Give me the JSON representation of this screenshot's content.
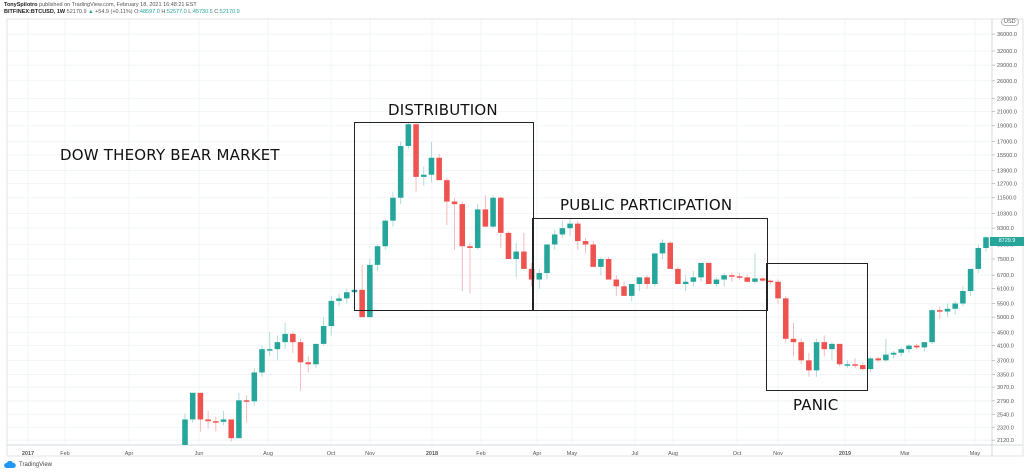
{
  "header": {
    "publisher": "TonySpilotro",
    "published_text": "published on TradingView.com, February 18, 2021 16:48:21 EST",
    "symbol": "BITFINEX:BTCUSD, 1W",
    "last": "52170.9",
    "change": "+54.9 (+0.11%)",
    "open_label": "O:",
    "open": "48597.0",
    "high_label": "H:",
    "high": "52577.0",
    "low_label": "L:",
    "low": "45730.5",
    "close_label": "C:",
    "close": "52170.9"
  },
  "footer": {
    "brand": "TradingView"
  },
  "currency": "USD",
  "last_price_tag": "8729.9",
  "colors": {
    "up": "#26a69a",
    "down": "#ef5350",
    "grid": "#eef3f6",
    "box": "#222222"
  },
  "annotations": {
    "title": "DOW THEORY BEAR MARKET",
    "distribution": "DISTRIBUTION",
    "public_participation": "PUBLIC PARTICIPATION",
    "panic": "PANIC"
  },
  "chart_data": {
    "type": "candlestick",
    "title": "DOW THEORY BEAR MARKET",
    "symbol": "BITFINEX:BTCUSD",
    "interval": "1W",
    "scale": "log",
    "ylabel": "USD",
    "y_ticks": [
      "36000.0",
      "32000.0",
      "29000.0",
      "26000.0",
      "23000.0",
      "21000.0",
      "19000.0",
      "17000.0",
      "15500.0",
      "13900.0",
      "12700.0",
      "11500.0",
      "10300.0",
      "9300.0",
      "8300.0",
      "7500.0",
      "6700.0",
      "6100.0",
      "5500.0",
      "5000.0",
      "4500.0",
      "4100.0",
      "3700.0",
      "3350.0",
      "3070.0",
      "2790.0",
      "2540.0",
      "2320.0",
      "2120.0"
    ],
    "x_ticks": [
      "2017",
      "Feb",
      "Apr",
      "Jun",
      "Aug",
      "Oct",
      "Nov",
      "2018",
      "Feb",
      "Apr",
      "May",
      "Jul",
      "Aug",
      "Oct",
      "Nov",
      "2019",
      "Mar",
      "May"
    ],
    "ylim": [
      2050,
      40000
    ],
    "phases": [
      {
        "label": "DISTRIBUTION",
        "x_range": [
          "Oct 2017",
          "Apr 2018"
        ],
        "price_range": [
          5400,
          21000
        ]
      },
      {
        "label": "PUBLIC PARTICIPATION",
        "x_range": [
          "Apr 2018",
          "Nov 2018"
        ],
        "price_range": [
          5400,
          10300
        ]
      },
      {
        "label": "PANIC",
        "x_range": [
          "Nov 2018",
          "Jan 2019"
        ],
        "price_range": [
          3070,
          7500
        ]
      }
    ],
    "ohlc": [
      [
        2050,
        2550,
        2000,
        2450
      ],
      [
        2450,
        2950,
        2400,
        2950
      ],
      [
        2950,
        2950,
        2250,
        2450
      ],
      [
        2450,
        2600,
        2300,
        2420
      ],
      [
        2420,
        2500,
        2250,
        2410
      ],
      [
        2410,
        2600,
        2350,
        2450
      ],
      [
        2450,
        2450,
        2100,
        2150
      ],
      [
        2150,
        2950,
        2150,
        2800
      ],
      [
        2800,
        2900,
        2400,
        2780
      ],
      [
        2780,
        3500,
        2700,
        3400
      ],
      [
        3400,
        4100,
        3300,
        4000
      ],
      [
        4000,
        4500,
        3800,
        4000
      ],
      [
        4000,
        4400,
        3700,
        4200
      ],
      [
        4200,
        4800,
        4000,
        4450
      ],
      [
        4450,
        4500,
        3900,
        4200
      ],
      [
        4200,
        4300,
        3000,
        3650
      ],
      [
        3650,
        3800,
        3400,
        3600
      ],
      [
        3600,
        4100,
        3500,
        4150
      ],
      [
        4150,
        5000,
        4100,
        4700
      ],
      [
        4700,
        5800,
        4400,
        5600
      ],
      [
        5600,
        5900,
        5400,
        5700
      ],
      [
        5700,
        6100,
        5500,
        5950
      ],
      [
        5950,
        6400,
        5600,
        6050
      ],
      [
        6050,
        7200,
        5200,
        5000
      ],
      [
        5000,
        7500,
        5000,
        7200
      ],
      [
        7200,
        8300,
        6900,
        8200
      ],
      [
        8200,
        9900,
        8000,
        9800
      ],
      [
        9800,
        12000,
        9400,
        11500
      ],
      [
        11500,
        17000,
        11000,
        16500
      ],
      [
        16500,
        19500,
        16200,
        19200
      ],
      [
        19200,
        19300,
        12000,
        13300
      ],
      [
        13300,
        14300,
        12500,
        13500
      ],
      [
        13500,
        17000,
        12800,
        15200
      ],
      [
        15200,
        15600,
        13500,
        13000
      ],
      [
        13000,
        13200,
        9500,
        11200
      ],
      [
        11200,
        11500,
        8000,
        11000
      ],
      [
        11000,
        11200,
        6000,
        8200
      ],
      [
        8200,
        8400,
        5900,
        8100
      ],
      [
        8100,
        11000,
        8000,
        10600
      ],
      [
        10600,
        11700,
        9500,
        9400
      ],
      [
        9400,
        11700,
        9300,
        11500
      ],
      [
        11500,
        11600,
        8100,
        9000
      ],
      [
        9000,
        9100,
        7600,
        7500
      ],
      [
        7500,
        8400,
        6600,
        7900
      ],
      [
        7900,
        9000,
        7200,
        7000
      ],
      [
        7000,
        7300,
        6200,
        6500
      ],
      [
        6500,
        7000,
        6100,
        6800
      ],
      [
        6800,
        8200,
        6500,
        8300
      ],
      [
        8300,
        9200,
        8000,
        8900
      ],
      [
        8900,
        9800,
        8700,
        9300
      ],
      [
        9300,
        9900,
        8800,
        9600
      ],
      [
        9600,
        9800,
        8000,
        8500
      ],
      [
        8500,
        8700,
        7800,
        8300
      ],
      [
        8300,
        8500,
        7200,
        7100
      ],
      [
        7100,
        7600,
        6700,
        7500
      ],
      [
        7500,
        7600,
        6600,
        6500
      ],
      [
        6500,
        6700,
        5800,
        6200
      ],
      [
        6200,
        6400,
        5800,
        5800
      ],
      [
        5800,
        6200,
        5600,
        6300
      ],
      [
        6300,
        6600,
        6000,
        6600
      ],
      [
        6600,
        6700,
        6100,
        6300
      ],
      [
        6300,
        7800,
        6200,
        7800
      ],
      [
        7800,
        8600,
        7500,
        8400
      ],
      [
        8400,
        8500,
        7000,
        7000
      ],
      [
        7000,
        7100,
        6300,
        6300
      ],
      [
        6300,
        6700,
        6000,
        6400
      ],
      [
        6400,
        6900,
        6200,
        6600
      ],
      [
        6600,
        7300,
        6400,
        7300
      ],
      [
        7300,
        7300,
        6300,
        6300
      ],
      [
        6300,
        6600,
        6200,
        6500
      ],
      [
        6500,
        6800,
        6200,
        6700
      ],
      [
        6700,
        6800,
        6400,
        6650
      ],
      [
        6650,
        6800,
        6500,
        6600
      ],
      [
        6600,
        6700,
        6400,
        6400
      ],
      [
        6400,
        7800,
        6300,
        6550
      ],
      [
        6550,
        6600,
        6400,
        6450
      ],
      [
        6450,
        6500,
        6300,
        6400
      ],
      [
        6400,
        6500,
        5500,
        5700
      ],
      [
        5700,
        5800,
        4200,
        4300
      ],
      [
        4300,
        4800,
        3800,
        4200
      ],
      [
        4200,
        4300,
        3600,
        3700
      ],
      [
        3700,
        3900,
        3300,
        3450
      ],
      [
        3450,
        4300,
        3300,
        4200
      ],
      [
        4200,
        4400,
        3800,
        4000
      ],
      [
        4000,
        4200,
        3700,
        4150
      ],
      [
        4150,
        4150,
        3550,
        3600
      ],
      [
        3600,
        3700,
        3500,
        3600
      ],
      [
        3600,
        3750,
        3500,
        3580
      ],
      [
        3580,
        3650,
        3450,
        3480
      ],
      [
        3480,
        3800,
        3400,
        3750
      ],
      [
        3750,
        3800,
        3650,
        3700
      ],
      [
        3700,
        4300,
        3650,
        3850
      ],
      [
        3850,
        3950,
        3750,
        3900
      ],
      [
        3900,
        4050,
        3800,
        4000
      ],
      [
        4000,
        4150,
        3900,
        4100
      ],
      [
        4100,
        4150,
        4000,
        4050
      ],
      [
        4050,
        4200,
        3950,
        4200
      ],
      [
        4200,
        5300,
        4150,
        5250
      ],
      [
        5250,
        5400,
        4950,
        5200
      ],
      [
        5200,
        5500,
        5000,
        5300
      ],
      [
        5300,
        5600,
        5100,
        5500
      ],
      [
        5500,
        6200,
        5400,
        6000
      ],
      [
        6000,
        7000,
        5800,
        7000
      ],
      [
        7000,
        8300,
        6800,
        8100
      ],
      [
        8100,
        8800,
        7900,
        8730
      ]
    ]
  }
}
